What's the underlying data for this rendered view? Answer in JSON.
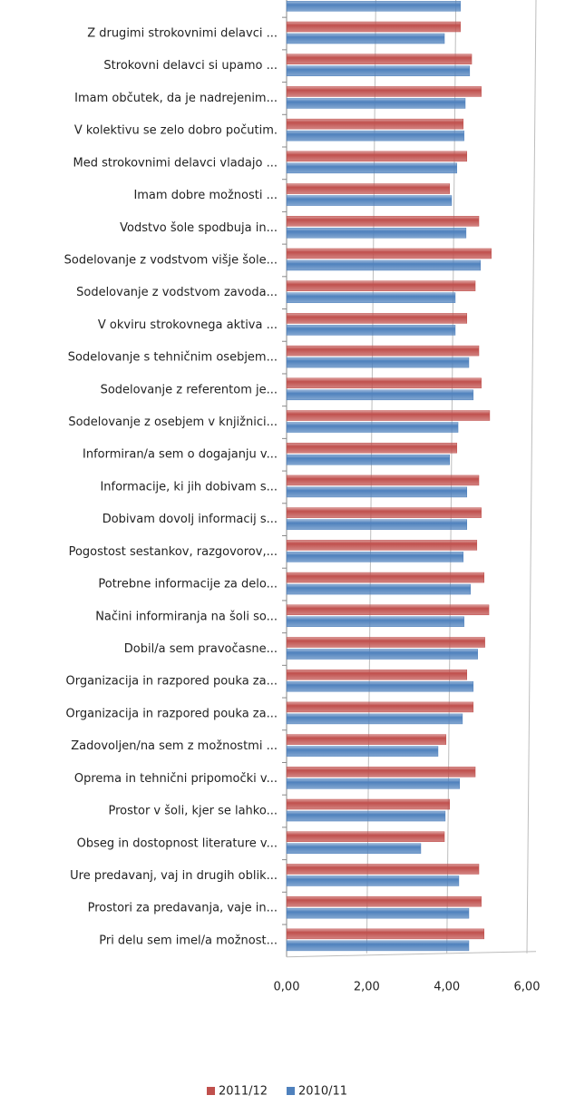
{
  "chart_data": {
    "type": "hbar",
    "categories": [
      null,
      "Z drugimi strokovnimi delavci ...",
      "Strokovni delavci si upamo ...",
      "Imam občutek, da je nadrejenim...",
      "V kolektivu se zelo dobro počutim.",
      "Med strokovnimi delavci vladajo ...",
      "Imam dobre možnosti ...",
      "Vodstvo šole spodbuja in...",
      "Sodelovanje z vodstvom višje šole...",
      "Sodelovanje z vodstvom zavoda...",
      "V okviru strokovnega aktiva ...",
      "Sodelovanje s tehničnim osebjem...",
      "Sodelovanje z referentom je...",
      "Sodelovanje z osebjem v knjižnici...",
      "Informiran/a sem o dogajanju v...",
      "Informacije, ki jih dobivam s...",
      "Dobivam dovolj informacij s...",
      "Pogostost sestankov, razgovorov,...",
      "Potrebne informacije za delo...",
      "Načini informiranja na šoli so...",
      "Dobil/a sem pravočasne...",
      "Organizacija in razpored pouka za...",
      "Organizacija in razpored pouka za...",
      "Zadovoljen/na sem z možnostmi ...",
      "Oprema in tehnični pripomočki v...",
      "Prostor v šoli, kjer se lahko...",
      "Obseg in dostopnost literature v...",
      "Ure predavanj, vaj in drugih oblik...",
      "Prostori za predavanja, vaje in...",
      "Pri delu sem imel/a možnost..."
    ],
    "series": [
      {
        "name": "2011/12",
        "color": "#c0504d",
        "values": [
          null,
          4.34,
          4.62,
          4.86,
          4.41,
          4.5,
          4.07,
          4.8,
          5.11,
          4.71,
          4.5,
          4.8,
          4.86,
          5.07,
          4.25,
          4.8,
          4.86,
          4.75,
          4.93,
          5.05,
          4.95,
          4.5,
          4.66,
          3.98,
          4.71,
          4.07,
          3.94,
          4.8,
          4.86,
          4.93
        ]
      },
      {
        "name": "2010/11",
        "color": "#4f81bd",
        "values": [
          4.34,
          3.94,
          4.57,
          4.46,
          4.43,
          4.25,
          4.12,
          4.48,
          4.84,
          4.21,
          4.21,
          4.55,
          4.66,
          4.28,
          4.07,
          4.5,
          4.5,
          4.41,
          4.59,
          4.43,
          4.77,
          4.66,
          4.39,
          3.78,
          4.32,
          3.96,
          3.35,
          4.3,
          4.55,
          4.55
        ]
      }
    ],
    "xlim": [
      0,
      6
    ],
    "xticks": [
      {
        "value": 0,
        "label": "0,00"
      },
      {
        "value": 2,
        "label": "2,00"
      },
      {
        "value": 4,
        "label": "4,00"
      },
      {
        "value": 6,
        "label": "6,00"
      }
    ],
    "grid": true,
    "legend": "bottom"
  }
}
